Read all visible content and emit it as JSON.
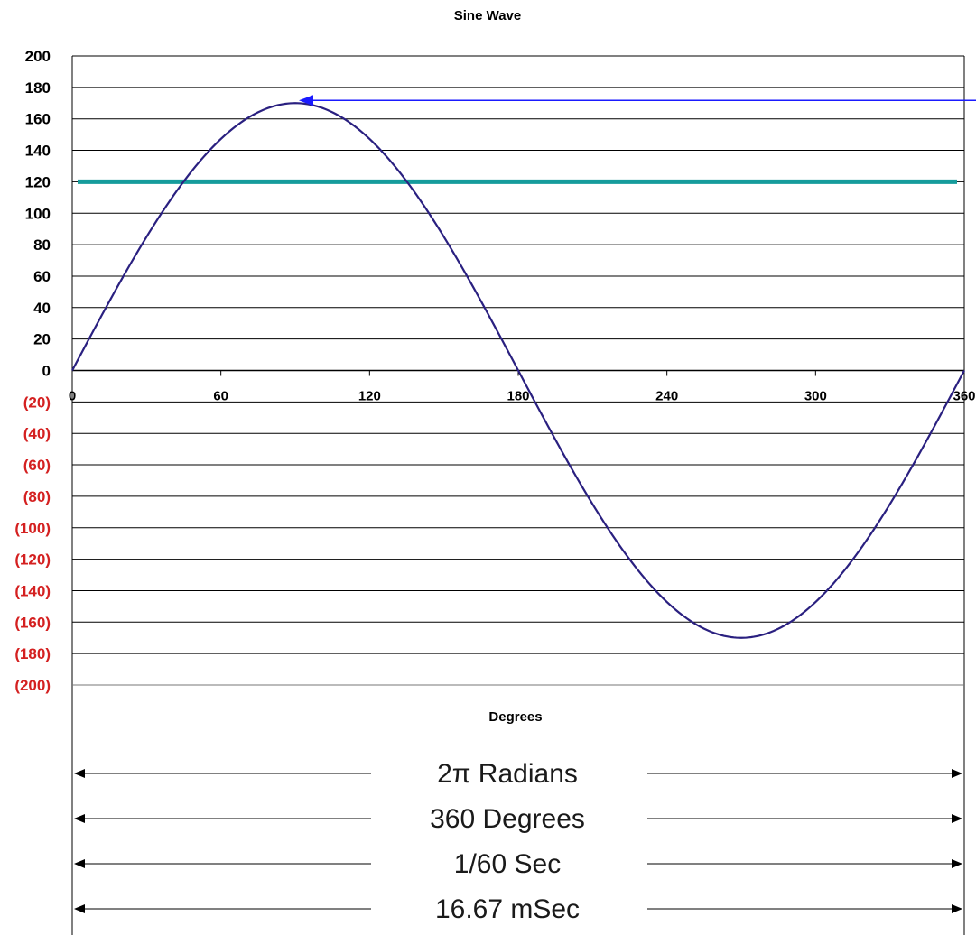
{
  "chart_data": {
    "type": "line",
    "title": "Sine Wave",
    "xlabel": "Degrees",
    "ylabel": "",
    "xlim": [
      0,
      360
    ],
    "ylim": [
      -200,
      200
    ],
    "x_ticks": [
      "0",
      "60",
      "120",
      "180",
      "240",
      "300",
      "360"
    ],
    "y_ticks": [
      "200",
      "180",
      "160",
      "140",
      "120",
      "100",
      "80",
      "60",
      "40",
      "20",
      "0",
      "(20)",
      "(40)",
      "(60)",
      "(80)",
      "(100)",
      "(120)",
      "(140)",
      "(160)",
      "(180)",
      "(200)"
    ],
    "grid": true,
    "series": [
      {
        "color": "#2a2080",
        "x": [
          0,
          15,
          30,
          45,
          60,
          75,
          90,
          105,
          120,
          135,
          150,
          165,
          180,
          195,
          210,
          225,
          240,
          255,
          270,
          285,
          300,
          315,
          330,
          345,
          360
        ],
        "values": [
          0,
          44,
          85,
          120,
          147,
          164,
          170,
          164,
          147,
          120,
          85,
          44,
          0,
          -44,
          -85,
          -120,
          -147,
          -164,
          -170,
          -164,
          -147,
          -120,
          -85,
          -44,
          0
        ]
      }
    ],
    "reference_line": {
      "y": 120,
      "color": "#169c9c"
    },
    "peak_arrow": {
      "x": 90,
      "y": 170,
      "color": "#1a1aff"
    },
    "positive_tick_color": "#000000",
    "negative_tick_color": "#d42020"
  },
  "spans": [
    "2π Radians",
    "360 Degrees",
    "1/60 Sec",
    "16.67 mSec"
  ]
}
